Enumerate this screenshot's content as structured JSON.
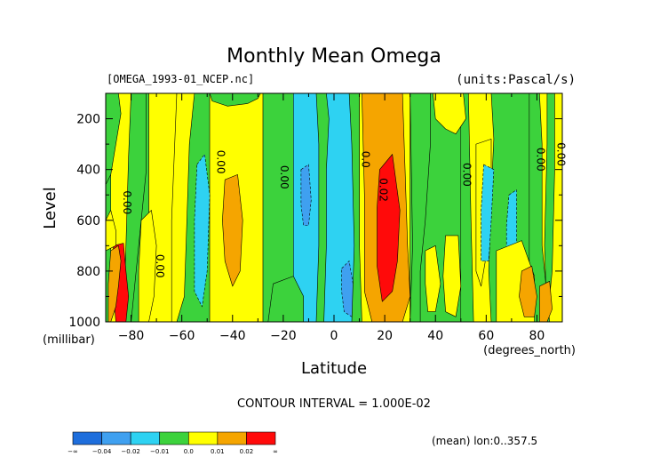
{
  "chart_data": {
    "type": "heatmap",
    "title": "Monthly Mean Omega",
    "file_label": "[OMEGA_1993-01_NCEP.nc]",
    "units_label": "(units:Pascal/s)",
    "xlabel": "Latitude",
    "x_unit_label": "(degrees_north)",
    "ylabel": "Level",
    "y_unit_label": "(millibar)",
    "xlim": [
      -90,
      90
    ],
    "ylim": [
      1000,
      100
    ],
    "x_ticks": [
      -80,
      -60,
      -40,
      -20,
      0,
      20,
      40,
      60,
      80
    ],
    "y_ticks": [
      200,
      400,
      600,
      800,
      1000
    ],
    "contour_interval_label": "CONTOUR INTERVAL = 1.000E-02",
    "footer_label": "(mean) lon:0..357.5",
    "colorbar": {
      "levels": [
        "-∞",
        "-0.04",
        "-0.02",
        "-0.01",
        "0.0",
        "0.01",
        "0.02",
        "∞"
      ],
      "colors": [
        "#1e6edc",
        "#3fa0f0",
        "#2ed2f2",
        "#3cd23c",
        "#ffff00",
        "#f5a500",
        "#ff0a0a"
      ]
    },
    "contour_labels": [
      {
        "text": "0.00",
        "lat": -83,
        "lev": 530
      },
      {
        "text": "0.00",
        "lat": -70,
        "lev": 780
      },
      {
        "text": "0.00",
        "lat": -46,
        "lev": 370
      },
      {
        "text": "0.00",
        "lat": -21,
        "lev": 430
      },
      {
        "text": "0.0",
        "lat": 11,
        "lev": 360
      },
      {
        "text": "0.02",
        "lat": 18,
        "lev": 480
      },
      {
        "text": "0.00",
        "lat": 51,
        "lev": 420
      },
      {
        "text": "0.00",
        "lat": 80,
        "lev": 360
      },
      {
        "text": "0.00",
        "lat": 88,
        "lev": 340
      }
    ],
    "field_bands": [
      {
        "lat0": -90,
        "lat1": -88,
        "class": "0.0"
      },
      {
        "lat0": -88,
        "lat1": -80,
        "class": "0.01"
      },
      {
        "lat0": -80,
        "lat1": -73,
        "class": "0.0"
      },
      {
        "lat0": -73,
        "lat1": -62,
        "class": "0.01"
      },
      {
        "lat0": -62,
        "lat1": -49,
        "class": "0.0"
      },
      {
        "lat0": -49,
        "lat1": -28,
        "class": "0.01"
      },
      {
        "lat0": -28,
        "lat1": -16,
        "class": "0.0"
      },
      {
        "lat0": -16,
        "lat1": 10,
        "class": "-0.01"
      },
      {
        "lat0": 10,
        "lat1": 30,
        "class": "0.01"
      },
      {
        "lat0": 30,
        "lat1": 50,
        "class": "0.0"
      },
      {
        "lat0": 50,
        "lat1": 77,
        "class": "0.0"
      },
      {
        "lat0": 77,
        "lat1": 90,
        "class": "0.0"
      }
    ],
    "field_patches": [
      {
        "class": "0.0",
        "poly": [
          [
            -90,
            100
          ],
          [
            -85,
            100
          ],
          [
            -84,
            180
          ],
          [
            -86,
            300
          ],
          [
            -88,
            420
          ],
          [
            -90,
            460
          ]
        ]
      },
      {
        "class": "0.0",
        "poly": [
          [
            -80,
            100
          ],
          [
            -74,
            100
          ],
          [
            -74,
            400
          ],
          [
            -77,
            700
          ],
          [
            -80,
            1000
          ],
          [
            -83,
            1000
          ],
          [
            -82,
            700
          ],
          [
            -81,
            350
          ]
        ]
      },
      {
        "class": "0.01",
        "poly": [
          [
            -76,
            600
          ],
          [
            -72,
            560
          ],
          [
            -70,
            700
          ],
          [
            -71,
            900
          ],
          [
            -73,
            1000
          ],
          [
            -77,
            1000
          ],
          [
            -77,
            800
          ]
        ]
      },
      {
        "class": "0.01",
        "poly": [
          [
            -62,
            100
          ],
          [
            -55,
            100
          ],
          [
            -57,
            300
          ],
          [
            -58,
            600
          ],
          [
            -59,
            900
          ],
          [
            -62,
            1000
          ],
          [
            -64,
            1000
          ],
          [
            -64,
            600
          ]
        ]
      },
      {
        "class": "-0.01",
        "poly": [
          [
            -54,
            380
          ],
          [
            -51,
            340
          ],
          [
            -49,
            500
          ],
          [
            -50,
            800
          ],
          [
            -52,
            940
          ],
          [
            -55,
            880
          ],
          [
            -55,
            600
          ]
        ]
      },
      {
        "class": "0.02",
        "poly": [
          [
            -43,
            440
          ],
          [
            -38,
            420
          ],
          [
            -36,
            600
          ],
          [
            -37,
            800
          ],
          [
            -40,
            860
          ],
          [
            -43,
            760
          ],
          [
            -44,
            600
          ]
        ]
      },
      {
        "class": "0.0",
        "poly": [
          [
            -49,
            100
          ],
          [
            -29,
            100
          ],
          [
            -30,
            120
          ],
          [
            -34,
            140
          ],
          [
            -42,
            150
          ],
          [
            -48,
            130
          ]
        ]
      },
      {
        "class": "0.0",
        "poly": [
          [
            -24,
            850
          ],
          [
            -16,
            820
          ],
          [
            -12,
            900
          ],
          [
            -12,
            1000
          ],
          [
            -26,
            1000
          ]
        ]
      },
      {
        "class": "-0.02",
        "poly": [
          [
            -13,
            400
          ],
          [
            -10,
            380
          ],
          [
            -9,
            520
          ],
          [
            -10,
            620
          ],
          [
            -12,
            620
          ],
          [
            -13,
            540
          ]
        ]
      },
      {
        "class": "0.0",
        "poly": [
          [
            -7,
            100
          ],
          [
            -3,
            100
          ],
          [
            -2,
            200
          ],
          [
            -3,
            400
          ],
          [
            -3,
            700
          ],
          [
            -4,
            1000
          ],
          [
            -7,
            1000
          ],
          [
            -6,
            700
          ],
          [
            -6,
            300
          ]
        ]
      },
      {
        "class": "-0.02",
        "poly": [
          [
            3,
            790
          ],
          [
            6,
            760
          ],
          [
            8,
            880
          ],
          [
            7,
            980
          ],
          [
            4,
            960
          ],
          [
            3,
            880
          ]
        ]
      },
      {
        "class": "0.0",
        "poly": [
          [
            6,
            100
          ],
          [
            10,
            100
          ],
          [
            10,
            400
          ],
          [
            10,
            700
          ],
          [
            11,
            1000
          ],
          [
            7,
            1000
          ],
          [
            8,
            700
          ],
          [
            7,
            300
          ]
        ]
      },
      {
        "class": "0.02",
        "poly": [
          [
            11,
            100
          ],
          [
            27,
            100
          ],
          [
            28,
            400
          ],
          [
            29,
            700
          ],
          [
            30,
            900
          ],
          [
            27,
            1000
          ],
          [
            15,
            1000
          ],
          [
            12,
            880
          ],
          [
            12,
            500
          ]
        ]
      },
      {
        "class": "0.03",
        "poly": [
          [
            18,
            400
          ],
          [
            23,
            340
          ],
          [
            26,
            560
          ],
          [
            25,
            760
          ],
          [
            23,
            880
          ],
          [
            19,
            920
          ],
          [
            17,
            780
          ],
          [
            17,
            550
          ]
        ]
      },
      {
        "class": "0.0",
        "poly": [
          [
            30,
            100
          ],
          [
            38,
            100
          ],
          [
            38,
            300
          ],
          [
            36,
            600
          ],
          [
            34,
            800
          ],
          [
            34,
            1000
          ],
          [
            30,
            1000
          ],
          [
            31,
            700
          ]
        ]
      },
      {
        "class": "0.01",
        "poly": [
          [
            39,
            100
          ],
          [
            51,
            100
          ],
          [
            52,
            200
          ],
          [
            48,
            260
          ],
          [
            44,
            240
          ],
          [
            40,
            200
          ]
        ]
      },
      {
        "class": "0.01",
        "poly": [
          [
            36,
            720
          ],
          [
            40,
            700
          ],
          [
            42,
            850
          ],
          [
            40,
            960
          ],
          [
            37,
            960
          ],
          [
            36,
            850
          ]
        ]
      },
      {
        "class": "0.01",
        "poly": [
          [
            53,
            100
          ],
          [
            62,
            100
          ],
          [
            63,
            280
          ],
          [
            62,
            500
          ],
          [
            61,
            800
          ],
          [
            62,
            1000
          ],
          [
            55,
            1000
          ],
          [
            54,
            600
          ]
        ]
      },
      {
        "class": "0.01",
        "poly": [
          [
            44,
            660
          ],
          [
            49,
            660
          ],
          [
            50,
            860
          ],
          [
            48,
            980
          ],
          [
            44,
            960
          ],
          [
            43,
            820
          ]
        ]
      },
      {
        "class": "0.01",
        "poly": [
          [
            56,
            300
          ],
          [
            62,
            280
          ],
          [
            62,
            540
          ],
          [
            60,
            740
          ],
          [
            58,
            860
          ],
          [
            56,
            800
          ],
          [
            56,
            560
          ]
        ]
      },
      {
        "class": "-0.01",
        "poly": [
          [
            59,
            380
          ],
          [
            63,
            400
          ],
          [
            62,
            600
          ],
          [
            61,
            760
          ],
          [
            58,
            760
          ],
          [
            58,
            560
          ]
        ]
      },
      {
        "class": "-0.01",
        "poly": [
          [
            69,
            500
          ],
          [
            72,
            480
          ],
          [
            72,
            760
          ],
          [
            70,
            820
          ],
          [
            68,
            760
          ],
          [
            68,
            620
          ]
        ]
      },
      {
        "class": "0.01",
        "poly": [
          [
            64,
            720
          ],
          [
            74,
            680
          ],
          [
            79,
            820
          ],
          [
            79,
            1000
          ],
          [
            64,
            1000
          ]
        ]
      },
      {
        "class": "0.02",
        "poly": [
          [
            74,
            800
          ],
          [
            78,
            780
          ],
          [
            80,
            900
          ],
          [
            79,
            980
          ],
          [
            75,
            980
          ],
          [
            73,
            900
          ]
        ]
      },
      {
        "class": "0.01",
        "poly": [
          [
            81,
            100
          ],
          [
            90,
            100
          ],
          [
            90,
            1000
          ],
          [
            85,
            1000
          ],
          [
            82,
            700
          ],
          [
            82,
            300
          ]
        ]
      },
      {
        "class": "0.0",
        "poly": [
          [
            84,
            100
          ],
          [
            87,
            100
          ],
          [
            87,
            400
          ],
          [
            86,
            800
          ],
          [
            84,
            1000
          ],
          [
            83,
            700
          ],
          [
            84,
            300
          ]
        ]
      },
      {
        "class": "0.02",
        "poly": [
          [
            81,
            860
          ],
          [
            85,
            840
          ],
          [
            86,
            950
          ],
          [
            84,
            1000
          ],
          [
            81,
            1000
          ]
        ]
      },
      {
        "class": "0.03",
        "poly": [
          [
            -87,
            700
          ],
          [
            -83,
            690
          ],
          [
            -82,
            800
          ],
          [
            -81,
            900
          ],
          [
            -82,
            1000
          ],
          [
            -86,
            1000
          ],
          [
            -87,
            880
          ]
        ]
      },
      {
        "class": "0.02",
        "poly": [
          [
            -88,
            720
          ],
          [
            -85,
            700
          ],
          [
            -84,
            760
          ],
          [
            -85,
            860
          ],
          [
            -86,
            940
          ],
          [
            -88,
            1000
          ],
          [
            -89,
            1000
          ],
          [
            -89,
            850
          ]
        ]
      },
      {
        "class": "0.01",
        "poly": [
          [
            -90,
            600
          ],
          [
            -88,
            560
          ],
          [
            -86,
            640
          ],
          [
            -86,
            700
          ],
          [
            -90,
            720
          ]
        ]
      }
    ]
  }
}
